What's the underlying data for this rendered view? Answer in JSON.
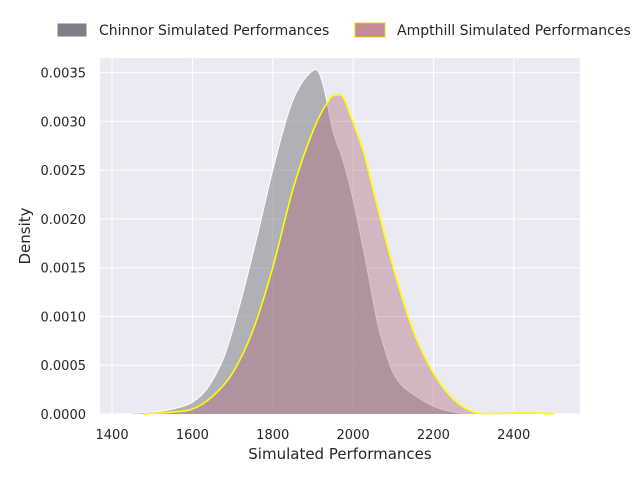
{
  "chart_data": {
    "type": "area",
    "title": "",
    "xlabel": "Simulated Performances",
    "ylabel": "Density",
    "xlim": [
      1370,
      2565
    ],
    "ylim": [
      0,
      0.00365
    ],
    "x_ticks": [
      1400,
      1600,
      1800,
      2000,
      2200,
      2400
    ],
    "y_ticks": [
      0.0,
      0.0005,
      0.001,
      0.0015,
      0.002,
      0.0025,
      0.003,
      0.0035
    ],
    "y_tick_labels": [
      "0.0000",
      "0.0005",
      "0.0010",
      "0.0015",
      "0.0020",
      "0.0025",
      "0.0030",
      "0.0035"
    ],
    "grid": true,
    "legend_position": "top, outside",
    "series": [
      {
        "name": "Chinnor Simulated Performances",
        "fill_color": "#7f7f87",
        "line_color": "#ffffff",
        "x": [
          1415,
          1500,
          1550,
          1600,
          1640,
          1680,
          1720,
          1760,
          1800,
          1840,
          1870,
          1900,
          1915,
          1930,
          1950,
          1975,
          2000,
          2030,
          2060,
          2080,
          2100,
          2120,
          2150,
          2200,
          2250,
          2300
        ],
        "y": [
          0.0,
          2e-05,
          5e-05,
          0.00012,
          0.00028,
          0.0006,
          0.00115,
          0.0018,
          0.0025,
          0.0031,
          0.00338,
          0.00352,
          0.0035,
          0.0033,
          0.0029,
          0.0026,
          0.0022,
          0.0016,
          0.00095,
          0.00065,
          0.00042,
          0.0003,
          0.0002,
          8e-05,
          2e-05,
          0.0
        ]
      },
      {
        "name": "Ampthill Simulated Performances",
        "fill_color": "#b06878",
        "line_color": "#ffff00",
        "x": [
          1480,
          1550,
          1600,
          1650,
          1700,
          1750,
          1800,
          1850,
          1900,
          1940,
          1960,
          1975,
          1990,
          2025,
          2050,
          2100,
          2150,
          2200,
          2250,
          2300,
          2350,
          2400,
          2450,
          2500
        ],
        "y": [
          0.0,
          2e-05,
          5e-05,
          0.00018,
          0.00042,
          0.00085,
          0.0015,
          0.0023,
          0.0029,
          0.00322,
          0.00327,
          0.00325,
          0.0031,
          0.0027,
          0.0023,
          0.0015,
          0.00085,
          0.00042,
          0.00015,
          2e-05,
          5e-06,
          1e-05,
          1e-05,
          0.0
        ]
      }
    ]
  }
}
